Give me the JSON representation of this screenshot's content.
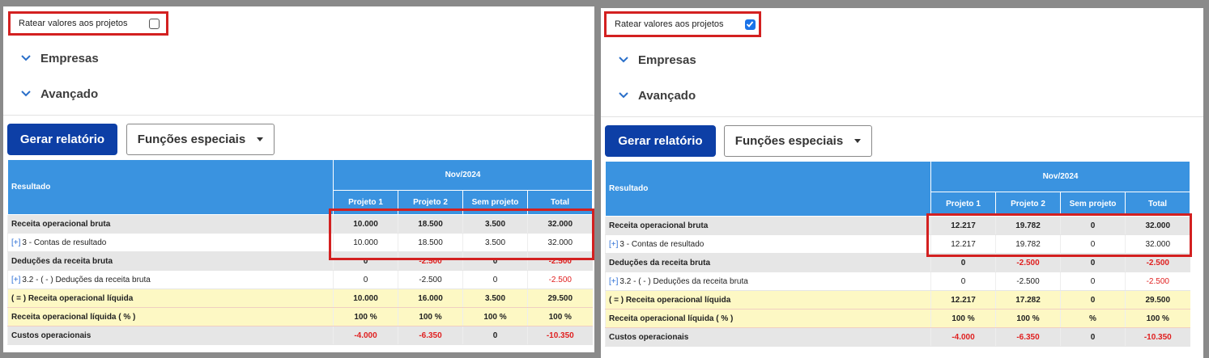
{
  "left": {
    "ratear_label": "Ratear valores aos projetos",
    "ratear_checked": false,
    "sections": [
      "Empresas",
      "Avançado"
    ],
    "buttons": {
      "generate": "Gerar relatório",
      "special": "Funções especiais"
    },
    "table": {
      "result_header": "Resultado",
      "period": "Nov/2024",
      "columns": [
        "Projeto 1",
        "Projeto 2",
        "Sem projeto",
        "Total"
      ],
      "rows": [
        {
          "style": "grey",
          "prefix": "",
          "label": "Receita operacional bruta",
          "values": [
            "10.000",
            "18.500",
            "3.500",
            "32.000"
          ],
          "neg": [
            false,
            false,
            false,
            false
          ]
        },
        {
          "style": "white",
          "prefix": "[+]",
          "label": "3 - Contas de resultado",
          "values": [
            "10.000",
            "18.500",
            "3.500",
            "32.000"
          ],
          "neg": [
            false,
            false,
            false,
            false
          ]
        },
        {
          "style": "grey",
          "prefix": "",
          "label": "Deduções da receita bruta",
          "values": [
            "0",
            "-2.500",
            "0",
            "-2.500"
          ],
          "neg": [
            false,
            true,
            false,
            true
          ]
        },
        {
          "style": "white",
          "prefix": "[+]",
          "label": "3.2 - ( - ) Deduções da receita bruta",
          "values": [
            "0",
            "-2.500",
            "0",
            "-2.500"
          ],
          "neg": [
            false,
            false,
            false,
            true
          ]
        },
        {
          "style": "yellow",
          "prefix": "",
          "label": "( = ) Receita operacional líquida",
          "values": [
            "10.000",
            "16.000",
            "3.500",
            "29.500"
          ],
          "neg": [
            false,
            false,
            false,
            false
          ]
        },
        {
          "style": "yellow",
          "prefix": "",
          "label": "Receita operacional líquida ( % )",
          "values": [
            "100 %",
            "100 %",
            "100 %",
            "100 %"
          ],
          "neg": [
            false,
            false,
            false,
            false
          ]
        },
        {
          "style": "grey",
          "prefix": "",
          "label": "Custos operacionais",
          "values": [
            "-4.000",
            "-6.350",
            "0",
            "-10.350"
          ],
          "neg": [
            true,
            true,
            false,
            true
          ]
        }
      ]
    }
  },
  "right": {
    "ratear_label": "Ratear valores aos projetos",
    "ratear_checked": true,
    "sections": [
      "Empresas",
      "Avançado"
    ],
    "buttons": {
      "generate": "Gerar relatório",
      "special": "Funções especiais"
    },
    "table": {
      "result_header": "Resultado",
      "period": "Nov/2024",
      "columns": [
        "Projeto 1",
        "Projeto 2",
        "Sem projeto",
        "Total"
      ],
      "rows": [
        {
          "style": "grey",
          "prefix": "",
          "label": "Receita operacional bruta",
          "values": [
            "12.217",
            "19.782",
            "0",
            "32.000"
          ],
          "neg": [
            false,
            false,
            false,
            false
          ]
        },
        {
          "style": "white",
          "prefix": "[+]",
          "label": "3 - Contas de resultado",
          "values": [
            "12.217",
            "19.782",
            "0",
            "32.000"
          ],
          "neg": [
            false,
            false,
            false,
            false
          ]
        },
        {
          "style": "grey",
          "prefix": "",
          "label": "Deduções da receita bruta",
          "values": [
            "0",
            "-2.500",
            "0",
            "-2.500"
          ],
          "neg": [
            false,
            true,
            false,
            true
          ]
        },
        {
          "style": "white",
          "prefix": "[+]",
          "label": "3.2 - ( - ) Deduções da receita bruta",
          "values": [
            "0",
            "-2.500",
            "0",
            "-2.500"
          ],
          "neg": [
            false,
            false,
            false,
            true
          ]
        },
        {
          "style": "yellow",
          "prefix": "",
          "label": "( = ) Receita operacional líquida",
          "values": [
            "12.217",
            "17.282",
            "0",
            "29.500"
          ],
          "neg": [
            false,
            false,
            false,
            false
          ]
        },
        {
          "style": "yellow",
          "prefix": "",
          "label": "Receita operacional líquida ( % )",
          "values": [
            "100 %",
            "100 %",
            "%",
            "100 %"
          ],
          "neg": [
            false,
            false,
            false,
            false
          ]
        },
        {
          "style": "grey",
          "prefix": "",
          "label": "Custos operacionais",
          "values": [
            "-4.000",
            "-6.350",
            "0",
            "-10.350"
          ],
          "neg": [
            true,
            true,
            false,
            true
          ]
        }
      ]
    }
  }
}
